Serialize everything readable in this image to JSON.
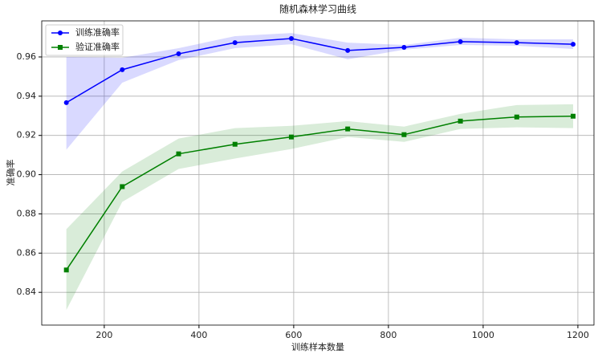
{
  "chart_data": {
    "type": "line",
    "title": "随机森林学习曲线",
    "x_label": "训练样本数量",
    "y_label": "准确率",
    "x": [
      120,
      238,
      357,
      476,
      595,
      714,
      833,
      952,
      1071,
      1190
    ],
    "series": [
      {
        "name": "训练准确率",
        "color": "#0000ff",
        "marker": "circle",
        "values": [
          0.9367,
          0.9535,
          0.9616,
          0.9673,
          0.9694,
          0.9633,
          0.9649,
          0.9678,
          0.9673,
          0.9665
        ],
        "upper": [
          0.96,
          0.9596,
          0.9645,
          0.9706,
          0.9722,
          0.9673,
          0.9661,
          0.9698,
          0.969,
          0.969
        ],
        "lower": [
          0.9127,
          0.9469,
          0.9584,
          0.9645,
          0.9665,
          0.9588,
          0.9637,
          0.9661,
          0.9657,
          0.9641
        ]
      },
      {
        "name": "验证准确率",
        "color": "#008000",
        "marker": "square",
        "values": [
          0.8514,
          0.8939,
          0.9106,
          0.9155,
          0.9192,
          0.9233,
          0.9204,
          0.9273,
          0.9294,
          0.9298
        ],
        "upper": [
          0.8722,
          0.9016,
          0.9184,
          0.9237,
          0.9249,
          0.9273,
          0.9245,
          0.931,
          0.9355,
          0.9359
        ],
        "lower": [
          0.831,
          0.8861,
          0.9029,
          0.9082,
          0.9131,
          0.9192,
          0.9167,
          0.9233,
          0.9241,
          0.9237
        ]
      }
    ],
    "xlim": [
      68,
      1234
    ],
    "ylim": [
      0.8233,
      0.9784
    ],
    "xticks": [
      200,
      400,
      600,
      800,
      1000,
      1200
    ],
    "yticks": [
      0.84,
      0.86,
      0.88,
      {
        "value": 0.9,
        "label": "0.90"
      },
      0.92,
      0.94,
      0.96
    ],
    "grid": true,
    "legend": "upper left"
  }
}
